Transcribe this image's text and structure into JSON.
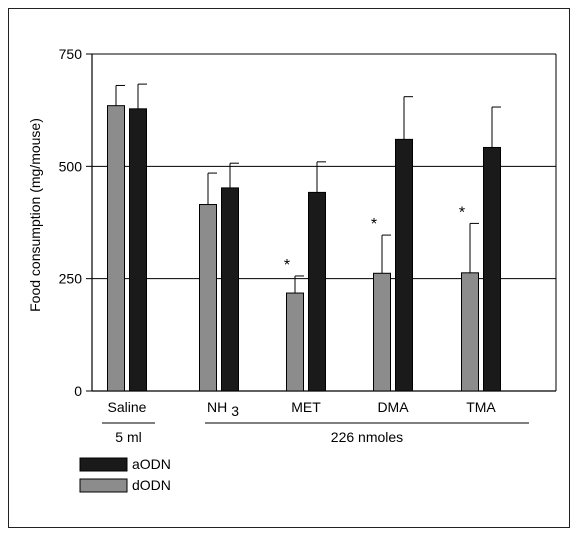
{
  "chart_data": {
    "type": "bar",
    "ylabel": "Food consumption (mg/mouse)",
    "ylim": [
      0,
      750
    ],
    "yticks": [
      0,
      250,
      500,
      750
    ],
    "grid": true,
    "categories": [
      "Saline",
      "NH 3",
      "MET",
      "DMA",
      "TMA"
    ],
    "series": [
      {
        "name": "dODN",
        "color": "#8c8c8c",
        "values": [
          635,
          415,
          218,
          262,
          263
        ],
        "errors": [
          45,
          70,
          38,
          85,
          110
        ]
      },
      {
        "name": "aODN",
        "color": "#1a1a1a",
        "values": [
          628,
          452,
          442,
          560,
          542
        ],
        "errors": [
          55,
          55,
          68,
          95,
          90
        ]
      }
    ],
    "significance": [
      {
        "category": "MET",
        "series": "dODN",
        "mark": "*"
      },
      {
        "category": "DMA",
        "series": "dODN",
        "mark": "*"
      },
      {
        "category": "TMA",
        "series": "dODN",
        "mark": "*"
      }
    ],
    "group_labels": [
      {
        "label": "5 ml",
        "categories": [
          "Saline"
        ]
      },
      {
        "label": "226 nmoles",
        "categories": [
          "NH 3",
          "MET",
          "DMA",
          "TMA"
        ]
      }
    ],
    "legend": {
      "position": "bottom-left",
      "entries": [
        {
          "label": "aODN",
          "color": "#1a1a1a"
        },
        {
          "label": "dODN",
          "color": "#8c8c8c"
        }
      ]
    }
  }
}
